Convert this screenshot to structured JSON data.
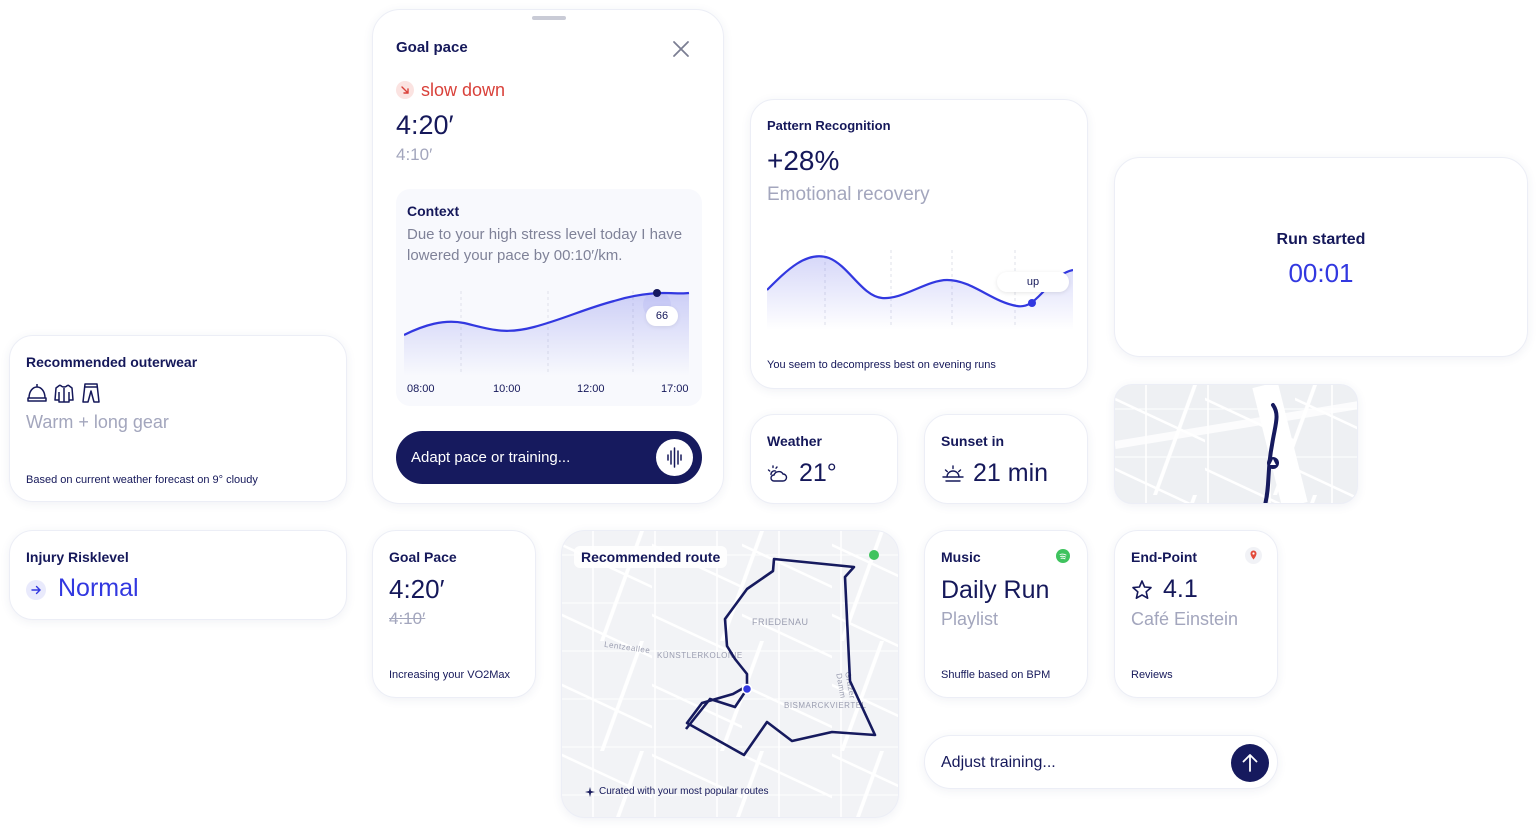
{
  "goal_sheet": {
    "title": "Goal pace",
    "status": "slow down",
    "current_pace": "4:20′",
    "previous_pace": "4:10′",
    "context_title": "Context",
    "context_text": "Due to your high stress level today I have lowered your pace by 00:10′/km.",
    "chart_badge": "66",
    "times": [
      "08:00",
      "10:00",
      "12:00",
      "17:00"
    ],
    "input_placeholder": "Adapt pace or training..."
  },
  "outerwear": {
    "title": "Recommended outerwear",
    "icons": [
      "beanie-icon",
      "jacket-icon",
      "pants-icon"
    ],
    "value": "Warm + long gear",
    "note": "Based on current weather forecast on 9° cloudy"
  },
  "injury": {
    "title": "Injury Risklevel",
    "value": "Normal"
  },
  "pattern": {
    "title": "Pattern Recognition",
    "value": "+28%",
    "label": "Emotional recovery",
    "badge": "up",
    "note": "You seem to decompress best on evening runs"
  },
  "weather": {
    "title": "Weather",
    "value": "21°",
    "icon": "partly-cloudy-icon"
  },
  "sunset": {
    "title": "Sunset in",
    "value": "21 min",
    "icon": "sunset-icon"
  },
  "run": {
    "title": "Run started",
    "value": "00:01"
  },
  "goal_card": {
    "title": "Goal Pace",
    "value": "4:20′",
    "old_value": "4:10′",
    "note": "Increasing your VO2Max"
  },
  "route": {
    "title": "Recommended route",
    "note": "Curated with your most popular routes",
    "labels": [
      "FRIEDENAU",
      "Lentzeallee",
      "KÜNSTLERKOLONIE",
      "BISMARCKVIERTEL",
      "Grazer Damm"
    ]
  },
  "music": {
    "title": "Music",
    "value": "Daily Run",
    "sub": "Playlist",
    "note": "Shuffle based on BPM"
  },
  "endpoint": {
    "title": "End-Point",
    "value": "4.1",
    "place": "Café Einstein",
    "note": "Reviews"
  },
  "adjust": {
    "placeholder": "Adjust training..."
  },
  "colors": {
    "navy": "#15185a",
    "accent_blue": "#3238e0",
    "warning_red": "#d9413a",
    "muted": "#a3a6bd",
    "spotify_green": "#3fc35e"
  }
}
